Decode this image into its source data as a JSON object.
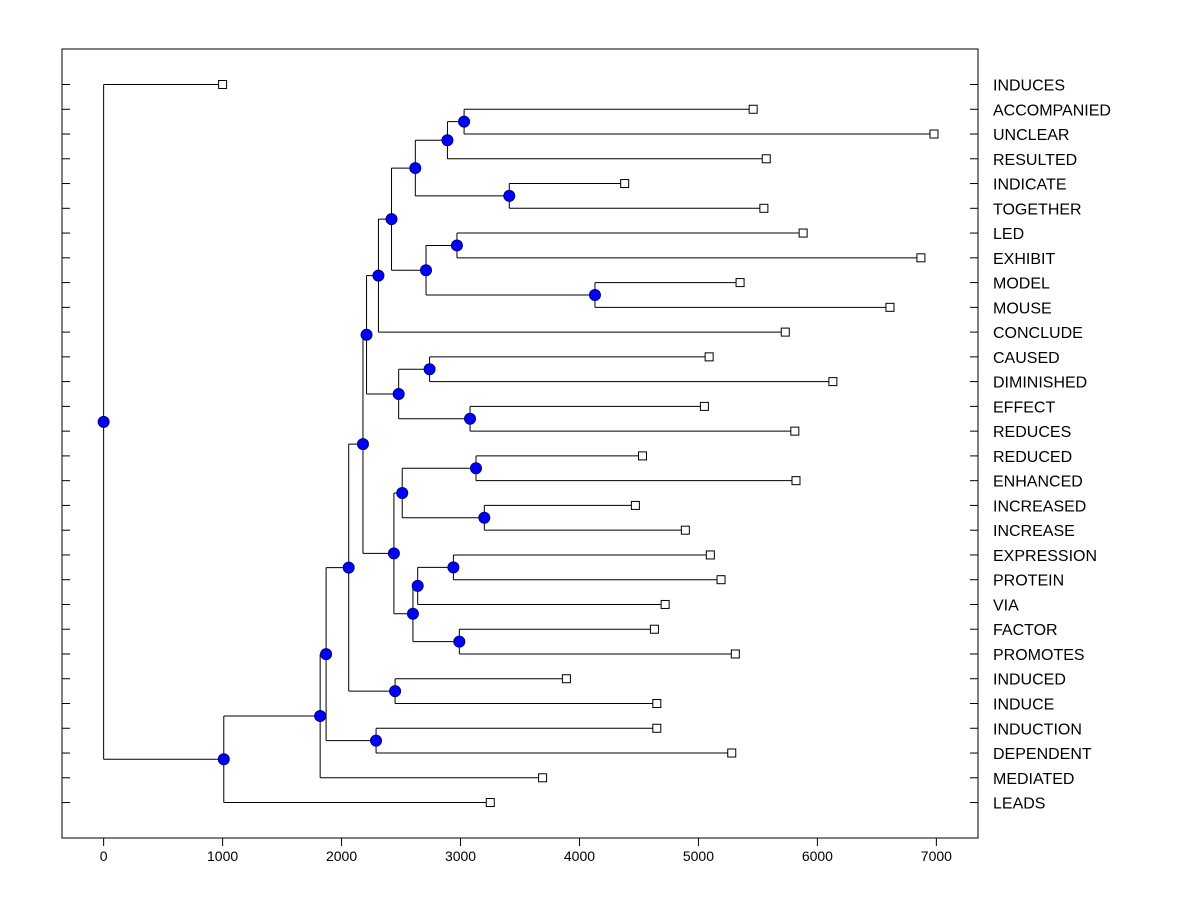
{
  "chart_data": {
    "type": "dendrogram",
    "title": "",
    "xlabel": "",
    "ylabel": "",
    "xlim": [
      -350,
      7350
    ],
    "x_ticks": [
      0,
      1000,
      2000,
      3000,
      4000,
      5000,
      6000,
      7000
    ],
    "x_tick_labels": [
      "0",
      "1000",
      "2000",
      "3000",
      "4000",
      "5000",
      "6000",
      "7000"
    ],
    "grid": false,
    "leaf_labels": [
      "INDUCES",
      "ACCOMPANIED",
      "UNCLEAR",
      "RESULTED",
      "INDICATE",
      "TOGETHER",
      "LED",
      "EXHIBIT",
      "MODEL",
      "MOUSE",
      "CONCLUDE",
      "CAUSED",
      "DIMINISHED",
      "EFFECT",
      "REDUCES",
      "REDUCED",
      "ENHANCED",
      "INCREASED",
      "INCREASE",
      "EXPRESSION",
      "PROTEIN",
      "VIA",
      "FACTOR",
      "PROMOTES",
      "INDUCED",
      "INDUCE",
      "INDUCTION",
      "DEPENDENT",
      "MEDIATED",
      "LEADS"
    ],
    "leaf_values": [
      1000,
      5460,
      6980,
      5570,
      4380,
      5550,
      5880,
      6870,
      5350,
      6610,
      5730,
      5090,
      6130,
      5050,
      5810,
      4530,
      5820,
      4470,
      4890,
      5100,
      5190,
      4720,
      4630,
      5310,
      3890,
      4650,
      4650,
      5280,
      3690,
      3250
    ],
    "merges": [
      {
        "id": "n1",
        "children": [
          "ACCOMPANIED",
          "UNCLEAR"
        ],
        "value": 3030
      },
      {
        "id": "n2",
        "children": [
          "n1",
          "RESULTED"
        ],
        "value": 2890
      },
      {
        "id": "n3",
        "children": [
          "INDICATE",
          "TOGETHER"
        ],
        "value": 3410
      },
      {
        "id": "n4",
        "children": [
          "n2",
          "n3"
        ],
        "value": 2620
      },
      {
        "id": "n5",
        "children": [
          "LED",
          "EXHIBIT"
        ],
        "value": 2970
      },
      {
        "id": "n6",
        "children": [
          "MODEL",
          "MOUSE"
        ],
        "value": 4130
      },
      {
        "id": "n7",
        "children": [
          "n5",
          "n6"
        ],
        "value": 2710
      },
      {
        "id": "n8",
        "children": [
          "n4",
          "n7"
        ],
        "value": 2420
      },
      {
        "id": "n9",
        "children": [
          "n8",
          "CONCLUDE"
        ],
        "value": 2310
      },
      {
        "id": "n10",
        "children": [
          "CAUSED",
          "DIMINISHED"
        ],
        "value": 2740
      },
      {
        "id": "n11",
        "children": [
          "EFFECT",
          "REDUCES"
        ],
        "value": 3080
      },
      {
        "id": "n12",
        "children": [
          "n10",
          "n11"
        ],
        "value": 2480
      },
      {
        "id": "n13",
        "children": [
          "n9",
          "n12"
        ],
        "value": 2210
      },
      {
        "id": "n14",
        "children": [
          "REDUCED",
          "ENHANCED"
        ],
        "value": 3130
      },
      {
        "id": "n15",
        "children": [
          "INCREASED",
          "INCREASE"
        ],
        "value": 3200
      },
      {
        "id": "n16",
        "children": [
          "n14",
          "n15"
        ],
        "value": 2510
      },
      {
        "id": "n17",
        "children": [
          "EXPRESSION",
          "PROTEIN"
        ],
        "value": 2940
      },
      {
        "id": "n18",
        "children": [
          "n17",
          "VIA"
        ],
        "value": 2640
      },
      {
        "id": "n19",
        "children": [
          "FACTOR",
          "PROMOTES"
        ],
        "value": 2990
      },
      {
        "id": "n20",
        "children": [
          "n18",
          "n19"
        ],
        "value": 2600
      },
      {
        "id": "n21",
        "children": [
          "n16",
          "n20"
        ],
        "value": 2440
      },
      {
        "id": "n22",
        "children": [
          "n13",
          "n21"
        ],
        "value": 2180
      },
      {
        "id": "n23",
        "children": [
          "INDUCED",
          "INDUCE"
        ],
        "value": 2450
      },
      {
        "id": "n24",
        "children": [
          "n22",
          "n23"
        ],
        "value": 2060
      },
      {
        "id": "n25",
        "children": [
          "INDUCTION",
          "DEPENDENT"
        ],
        "value": 2290
      },
      {
        "id": "n26",
        "children": [
          "n24",
          "n25"
        ],
        "value": 1870
      },
      {
        "id": "n27",
        "children": [
          "n26",
          "MEDIATED"
        ],
        "value": 1820
      },
      {
        "id": "n28",
        "children": [
          "n27",
          "LEADS"
        ],
        "value": 1010
      },
      {
        "id": "n29",
        "children": [
          "INDUCES",
          "n28"
        ],
        "value": 0
      }
    ],
    "colors": {
      "node_fill": "#0000ff",
      "node_stroke": "#000080",
      "leaf_fill": "#ffffff",
      "line": "#000000"
    }
  }
}
